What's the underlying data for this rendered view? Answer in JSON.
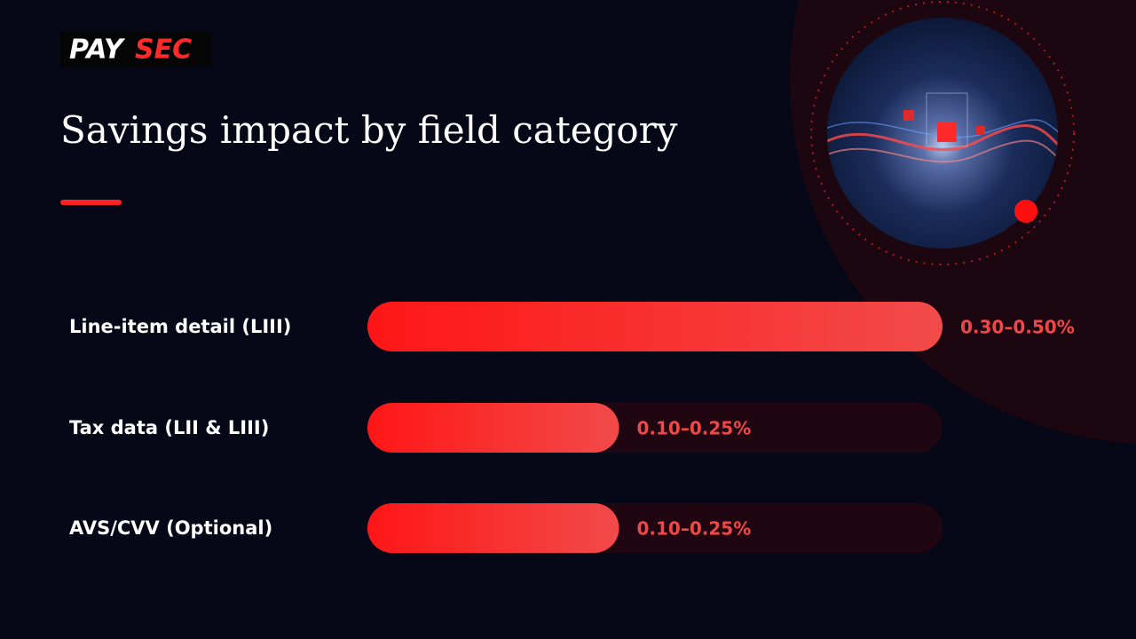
{
  "brand": {
    "first": "PAY",
    "second": "SEC"
  },
  "chart_data": {
    "type": "range-bar",
    "title": "Savings impact by field category",
    "categories": [
      "Line-item detail (LIII)",
      "Tax data (LII & LIII)",
      "AVS/CVV (Optional)"
    ],
    "low": [
      0.3,
      0.1,
      0.1
    ],
    "high": [
      0.5,
      0.25,
      0.25
    ],
    "value_labels": [
      "0.30–0.50%",
      "0.10–0.25%",
      "0.10–0.25%"
    ],
    "xlim": [
      0,
      0.4
    ],
    "color": "#ff2020"
  }
}
